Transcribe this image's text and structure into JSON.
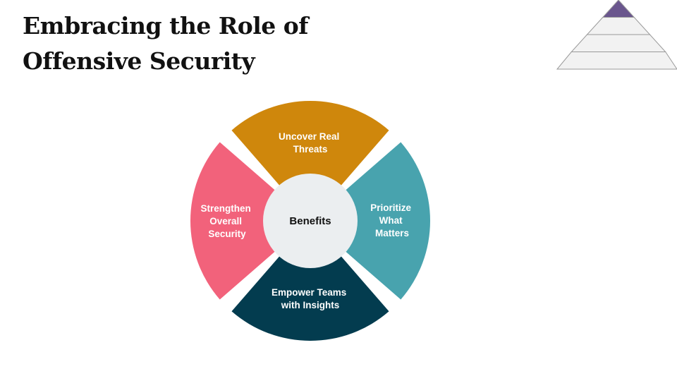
{
  "title": {
    "line1": "Embracing the Role of",
    "line2": "Offensive Security"
  },
  "hub": {
    "label": "Benefits",
    "color": "#ebeef0"
  },
  "segments": [
    {
      "id": "top",
      "lines": [
        "Uncover Real",
        "Threats"
      ],
      "color": "#cf870c"
    },
    {
      "id": "right",
      "lines": [
        "Prioritize",
        "What",
        "Matters"
      ],
      "color": "#48a3ae"
    },
    {
      "id": "bottom",
      "lines": [
        "Empower Teams",
        "with Insights"
      ],
      "color": "#033c4f"
    },
    {
      "id": "left",
      "lines": [
        "Strengthen",
        "Overall",
        "Security"
      ],
      "color": "#f2627b"
    }
  ],
  "pyramid": {
    "levels": 4,
    "highlight_color": "#6a568d",
    "fill_color": "#f2f2f2",
    "stroke_color": "#9a9a9a"
  }
}
